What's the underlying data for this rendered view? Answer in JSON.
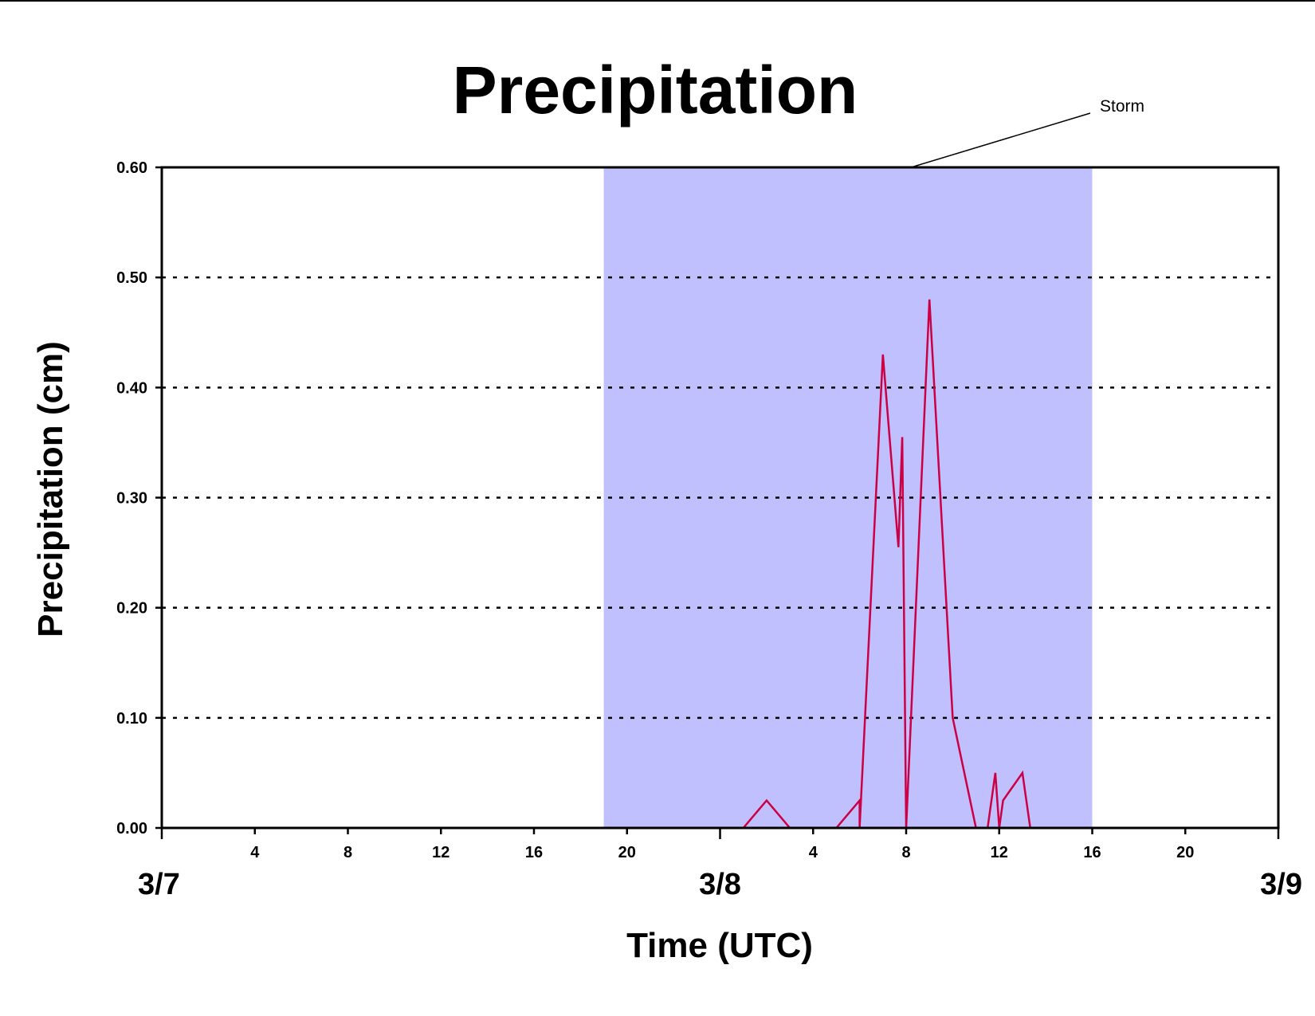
{
  "chart_data": {
    "type": "line",
    "title": "Precipitation",
    "xlabel": "Time (UTC)",
    "ylabel": "Precipitation (cm)",
    "x_unit": "hour",
    "xlim": [
      "3/7 00:00",
      "3/9 00:00"
    ],
    "ylim": [
      0,
      0.6
    ],
    "y_ticks": [
      "0.00",
      "0.10",
      "0.20",
      "0.30",
      "0.40",
      "0.50",
      "0.60"
    ],
    "hour_ticks": [
      "4",
      "8",
      "12",
      "16",
      "20",
      "4",
      "8",
      "12",
      "16",
      "20"
    ],
    "day_labels": [
      "3/7",
      "3/8",
      "3/9"
    ],
    "grid": "horizontal dotted",
    "annotation": {
      "text": "Storm",
      "span": [
        "3/7 19:00",
        "3/8 16:00"
      ],
      "color": "#c0c0ff"
    },
    "series": [
      {
        "color": "#cc0044",
        "x": [
          "3/7 00:00",
          "3/8 01:00",
          "3/8 02:00",
          "3/8 03:00",
          "3/8 05:00",
          "3/8 06:00",
          "3/8 06:00",
          "3/8 07:00",
          "3/8 07:40",
          "3/8 07:50",
          "3/8 08:00",
          "3/8 09:00",
          "3/8 10:00",
          "3/8 11:00",
          "3/8 11:30",
          "3/8 11:50",
          "3/8 12:00",
          "3/8 12:10",
          "3/8 13:00",
          "3/8 13:10",
          "3/8 13:20",
          "3/9 00:00"
        ],
        "values": [
          0,
          0,
          0.025,
          0,
          0,
          0.025,
          0,
          0.43,
          0.255,
          0.355,
          0,
          0.48,
          0.1,
          0,
          0,
          0.05,
          0,
          0.025,
          0.05,
          0.025,
          0,
          0
        ]
      }
    ]
  }
}
